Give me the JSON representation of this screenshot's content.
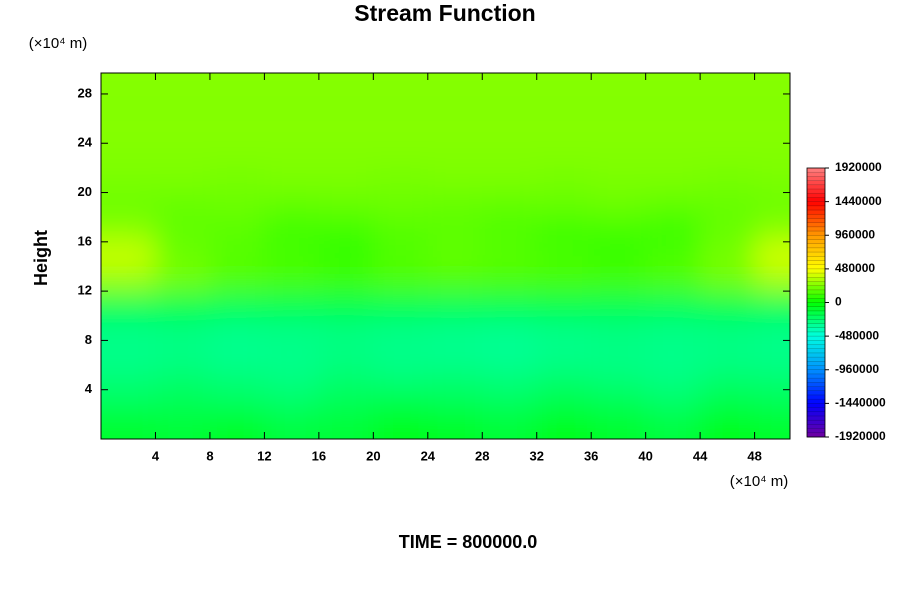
{
  "chart_data": {
    "type": "contour",
    "title": "Stream Function",
    "y_label": "Height",
    "y_unit": "(×10⁴ m)",
    "x_unit": "(×10⁴ m)",
    "footer": "TIME = 800000.0",
    "xlim": [
      0,
      50.6
    ],
    "ylim": [
      0,
      29.7
    ],
    "xticks": [
      4,
      8,
      12,
      16,
      20,
      24,
      28,
      32,
      36,
      40,
      44,
      48
    ],
    "yticks": [
      4,
      8,
      12,
      16,
      20,
      24,
      28
    ],
    "x": [
      2,
      6,
      10,
      14,
      18,
      22,
      26,
      30,
      34,
      38,
      42,
      46,
      50
    ],
    "y": [
      1,
      3,
      5,
      7,
      9,
      11,
      13,
      15,
      17,
      19,
      21,
      23,
      25,
      27,
      29
    ],
    "z": [
      [
        -100000,
        -120000,
        -80000,
        -140000,
        -120000,
        -60000,
        -80000,
        -120000,
        -60000,
        -100000,
        -140000,
        -60000,
        -100000
      ],
      [
        -200000,
        -180000,
        -200000,
        -220000,
        -180000,
        -160000,
        -180000,
        -200000,
        -160000,
        -180000,
        -220000,
        -160000,
        -180000
      ],
      [
        -260000,
        -240000,
        -260000,
        -280000,
        -240000,
        -260000,
        -250000,
        -270000,
        -240000,
        -260000,
        -280000,
        -240000,
        -250000
      ],
      [
        -300000,
        -290000,
        -310000,
        -300000,
        -280000,
        -300000,
        -310000,
        -320000,
        -300000,
        -290000,
        -300000,
        -290000,
        -300000
      ],
      [
        -280000,
        -270000,
        -290000,
        -280000,
        -270000,
        -280000,
        -290000,
        -300000,
        -280000,
        -270000,
        -280000,
        -270000,
        -280000
      ],
      [
        -160000,
        -150000,
        -170000,
        -160000,
        -150000,
        -160000,
        -170000,
        -160000,
        -150000,
        -160000,
        -170000,
        -150000,
        -160000
      ],
      [
        300000,
        220000,
        160000,
        140000,
        120000,
        150000,
        160000,
        150000,
        140000,
        130000,
        150000,
        220000,
        320000
      ],
      [
        380000,
        200000,
        160000,
        130000,
        90000,
        150000,
        180000,
        160000,
        130000,
        100000,
        140000,
        220000,
        400000
      ],
      [
        260000,
        180000,
        170000,
        120000,
        120000,
        160000,
        170000,
        150000,
        120000,
        130000,
        110000,
        190000,
        260000
      ],
      [
        200000,
        190000,
        200000,
        180000,
        190000,
        200000,
        190000,
        180000,
        190000,
        200000,
        180000,
        190000,
        200000
      ],
      [
        230000,
        230000,
        220000,
        230000,
        230000,
        220000,
        230000,
        230000,
        220000,
        230000,
        230000,
        220000,
        230000
      ],
      [
        240000,
        240000,
        240000,
        240000,
        240000,
        240000,
        240000,
        240000,
        240000,
        240000,
        240000,
        240000,
        240000
      ],
      [
        250000,
        250000,
        250000,
        250000,
        250000,
        250000,
        250000,
        250000,
        250000,
        250000,
        250000,
        250000,
        250000
      ],
      [
        245000,
        245000,
        245000,
        245000,
        245000,
        245000,
        245000,
        245000,
        245000,
        245000,
        245000,
        245000,
        245000
      ],
      [
        250000,
        250000,
        250000,
        250000,
        250000,
        250000,
        250000,
        250000,
        250000,
        250000,
        250000,
        250000,
        250000
      ]
    ],
    "colorbar": {
      "lim": [
        -1920000,
        1920000
      ],
      "ticks": [
        -1920000,
        -1440000,
        -960000,
        -480000,
        0,
        480000,
        960000,
        1440000,
        1920000
      ],
      "level_step": 60000,
      "colors": [
        "#7000a0",
        "#0000ff",
        "#0090ff",
        "#00ffe0",
        "#00ff00",
        "#ffff00",
        "#ff9900",
        "#ff0000",
        "#ff8080"
      ]
    }
  }
}
